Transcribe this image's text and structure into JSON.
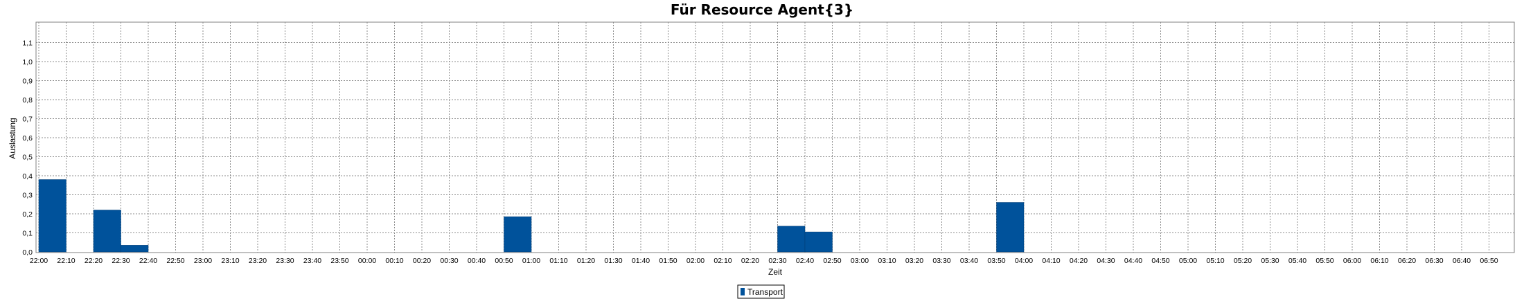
{
  "chart_data": {
    "type": "bar",
    "title": "Für Resource Agent{3}",
    "xlabel": "Zeit",
    "ylabel": "Auslastung",
    "ylim": [
      0,
      1.2
    ],
    "yticks": [
      "0,0",
      "0,1",
      "0,2",
      "0,3",
      "0,4",
      "0,5",
      "0,6",
      "0,7",
      "0,8",
      "0,9",
      "1,0",
      "1,1"
    ],
    "grid": true,
    "legend_position": "bottom-center",
    "color": "#00529B",
    "categories": [
      "22:00",
      "22:10",
      "22:20",
      "22:30",
      "22:40",
      "22:50",
      "23:00",
      "23:10",
      "23:20",
      "23:30",
      "23:40",
      "23:50",
      "00:00",
      "00:10",
      "00:20",
      "00:30",
      "00:40",
      "00:50",
      "01:00",
      "01:10",
      "01:20",
      "01:30",
      "01:40",
      "01:50",
      "02:00",
      "02:10",
      "02:20",
      "02:30",
      "02:40",
      "02:50",
      "03:00",
      "03:10",
      "03:20",
      "03:30",
      "03:40",
      "03:50",
      "04:00",
      "04:10",
      "04:20",
      "04:30",
      "04:40",
      "04:50",
      "05:00",
      "05:10",
      "05:20",
      "05:30",
      "05:40",
      "05:50",
      "06:00",
      "06:10",
      "06:20",
      "06:30",
      "06:40",
      "06:50"
    ],
    "series": [
      {
        "name": "Transport",
        "values": [
          0.38,
          0,
          0.22,
          0.035,
          0,
          0,
          0,
          0,
          0,
          0,
          0,
          0,
          0,
          0,
          0,
          0,
          0,
          0.185,
          0,
          0,
          0,
          0,
          0,
          0,
          0,
          0,
          0,
          0.135,
          0.105,
          0,
          0,
          0,
          0,
          0,
          0,
          0.26,
          0,
          0,
          0,
          0,
          0,
          0,
          0,
          0,
          0,
          0,
          0,
          0,
          0,
          0,
          0,
          0,
          0,
          0
        ]
      }
    ]
  }
}
